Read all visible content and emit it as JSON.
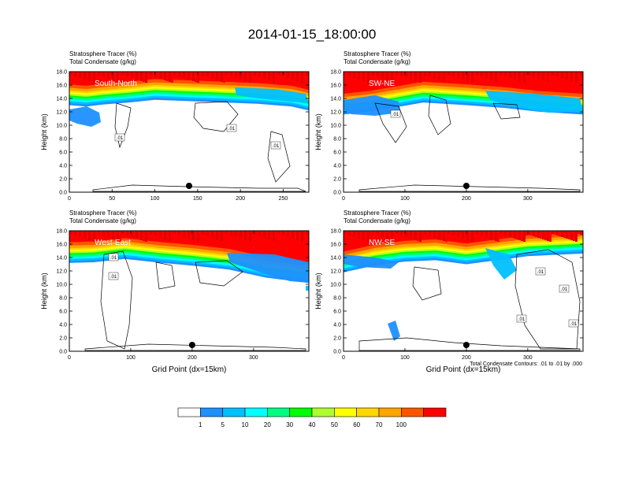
{
  "title": "2014-01-15_18:00:00",
  "panel_line1": "Stratosphere Tracer   (%)",
  "panel_line2": "Total Condensate   (g/kg)",
  "y_axis_label": "Height (km)",
  "x_axis_label": "Grid Point (dx=15km)",
  "contour_note": "Total Condensate Contours: .01 to .01 by .000",
  "chart_data": [
    {
      "type": "heatmap",
      "cross_section": "South-North",
      "xlim": [
        0,
        280
      ],
      "x_ticks": [
        "0",
        "50",
        "100",
        "150",
        "200",
        "250"
      ],
      "x_tick_values": [
        0,
        50,
        100,
        150,
        200,
        250
      ],
      "ylim": [
        0,
        18
      ],
      "y_ticks": [
        "0.0",
        "2.0",
        "4.0",
        "6.0",
        "8.0",
        "10.0",
        "12.0",
        "14.0",
        "16.0",
        "18.0"
      ],
      "marker_x": 140,
      "contour_labels": [
        ".01",
        ".01",
        ".01"
      ],
      "tracer_front": [
        [
          0,
          14.6
        ],
        [
          20,
          14.4
        ],
        [
          40,
          14.7
        ],
        [
          70,
          15.0
        ],
        [
          100,
          15.4
        ],
        [
          140,
          15.2
        ],
        [
          180,
          15.0
        ],
        [
          220,
          14.8
        ],
        [
          260,
          14.4
        ],
        [
          280,
          13.8
        ]
      ]
    },
    {
      "type": "heatmap",
      "cross_section": "SW-NE",
      "xlim": [
        0,
        390
      ],
      "x_ticks": [
        "0",
        "100",
        "200",
        "300"
      ],
      "x_tick_values": [
        0,
        100,
        200,
        300
      ],
      "ylim": [
        0,
        18
      ],
      "y_ticks": [
        "0.0",
        "2.0",
        "4.0",
        "6.0",
        "8.0",
        "10.0",
        "12.0",
        "14.0",
        "16.0",
        "18.0"
      ],
      "marker_x": 200,
      "contour_labels": [
        ".01"
      ],
      "tracer_front": [
        [
          0,
          13.2
        ],
        [
          40,
          13.6
        ],
        [
          80,
          14.2
        ],
        [
          130,
          15.0
        ],
        [
          200,
          14.6
        ],
        [
          260,
          14.2
        ],
        [
          320,
          13.6
        ],
        [
          390,
          13.2
        ]
      ]
    },
    {
      "type": "heatmap",
      "cross_section": "West-East",
      "xlim": [
        0,
        390
      ],
      "x_ticks": [
        "0",
        "100",
        "200",
        "300"
      ],
      "x_tick_values": [
        0,
        100,
        200,
        300
      ],
      "ylim": [
        0,
        18
      ],
      "y_ticks": [
        "0.0",
        "2.0",
        "4.0",
        "6.0",
        "8.0",
        "10.0",
        "12.0",
        "14.0",
        "16.0",
        "18.0"
      ],
      "marker_x": 200,
      "contour_labels": [
        ".01",
        ".01"
      ],
      "tracer_front": [
        [
          0,
          14.8
        ],
        [
          40,
          14.9
        ],
        [
          90,
          15.4
        ],
        [
          150,
          14.8
        ],
        [
          200,
          14.4
        ],
        [
          260,
          13.8
        ],
        [
          320,
          12.6
        ],
        [
          390,
          11.8
        ]
      ]
    },
    {
      "type": "heatmap",
      "cross_section": "NW-SE",
      "xlim": [
        0,
        390
      ],
      "x_ticks": [
        "0",
        "100",
        "200",
        "300"
      ],
      "x_tick_values": [
        0,
        100,
        200,
        300
      ],
      "ylim": [
        0,
        18
      ],
      "y_ticks": [
        "0.0",
        "2.0",
        "4.0",
        "6.0",
        "8.0",
        "10.0",
        "12.0",
        "14.0",
        "16.0",
        "18.0"
      ],
      "marker_x": 200,
      "contour_labels": [
        ".01",
        ".01",
        ".01",
        ".01"
      ],
      "tracer_front": [
        [
          0,
          13.4
        ],
        [
          50,
          14.4
        ],
        [
          100,
          15.0
        ],
        [
          150,
          15.2
        ],
        [
          200,
          14.6
        ],
        [
          250,
          15.2
        ],
        [
          300,
          15.8
        ],
        [
          390,
          16.2
        ]
      ]
    }
  ],
  "colorbar": {
    "labels": [
      "1",
      "5",
      "10",
      "20",
      "30",
      "40",
      "50",
      "60",
      "70",
      "100"
    ],
    "colors": [
      "#ffffff",
      "#1e90ff",
      "#00bfff",
      "#00ffff",
      "#00ff80",
      "#00ff00",
      "#adff2f",
      "#ffff00",
      "#ffd700",
      "#ffa500",
      "#ff5500",
      "#ff0000"
    ]
  }
}
